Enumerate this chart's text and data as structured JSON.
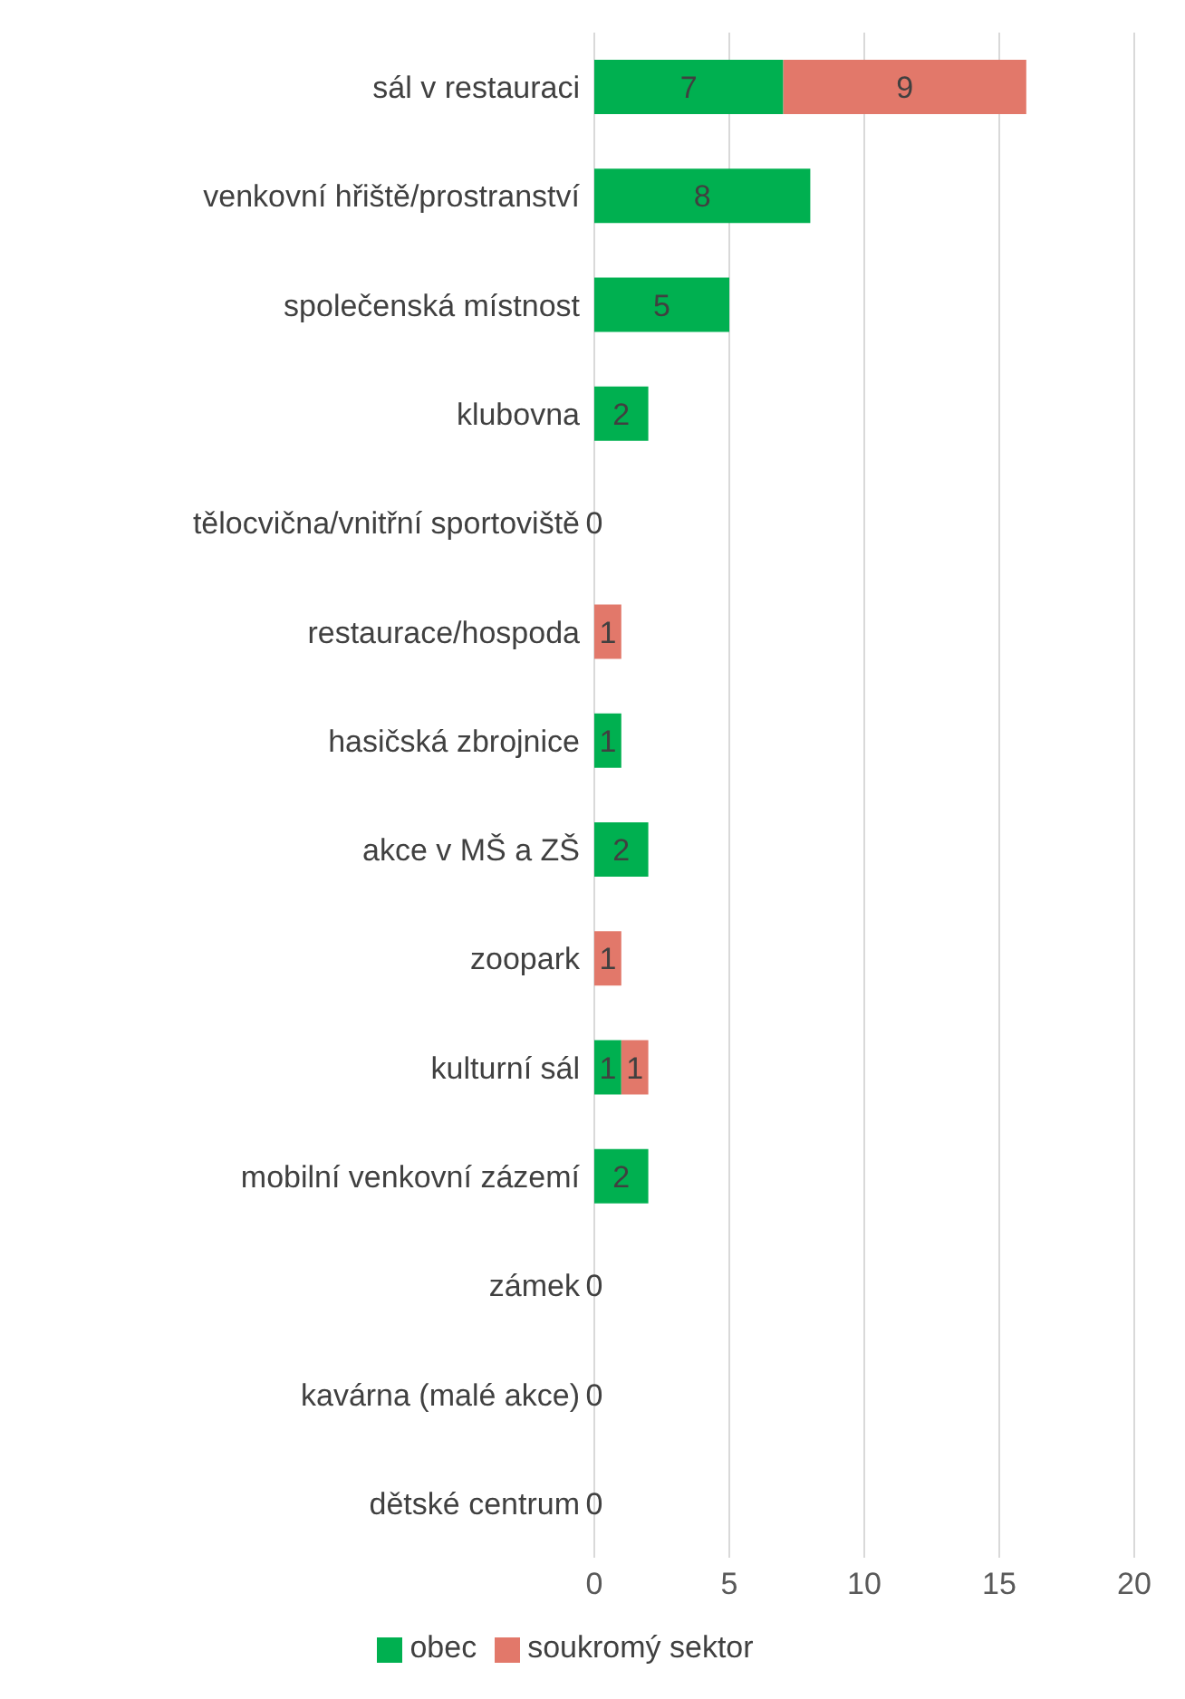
{
  "chart_data": {
    "type": "bar",
    "orientation": "horizontal",
    "stacked": true,
    "categories": [
      "sál v restauraci",
      "venkovní hřiště/prostranství",
      "společenská místnost",
      "klubovna",
      "tělocvična/vnitřní sportoviště",
      "restaurace/hospoda",
      "hasičská zbrojnice",
      "akce v MŠ a ZŠ",
      "zoopark",
      "kulturní sál",
      "mobilní venkovní zázemí",
      "zámek",
      "kavárna (malé akce)",
      "dětské centrum"
    ],
    "series": [
      {
        "name": "obec",
        "color": "#00b050",
        "values": [
          7,
          8,
          5,
          2,
          0,
          0,
          1,
          2,
          0,
          1,
          2,
          0,
          0,
          0
        ],
        "value_labels": [
          "7",
          "8",
          "5",
          "2",
          "0",
          null,
          "1",
          "2",
          null,
          "1",
          "2",
          "0",
          "0",
          "0"
        ]
      },
      {
        "name": "soukromý sektor",
        "color": "#e2786a",
        "values": [
          9,
          0,
          0,
          0,
          0,
          1,
          0,
          0,
          1,
          1,
          0,
          0,
          0,
          0
        ],
        "value_labels": [
          "9",
          null,
          null,
          null,
          null,
          "1",
          null,
          null,
          "1",
          "1",
          null,
          null,
          null,
          null
        ]
      }
    ],
    "xlim": [
      0,
      20
    ],
    "xticks": [
      0,
      5,
      10,
      15,
      20
    ],
    "grid": "x",
    "legend": "bottom"
  }
}
